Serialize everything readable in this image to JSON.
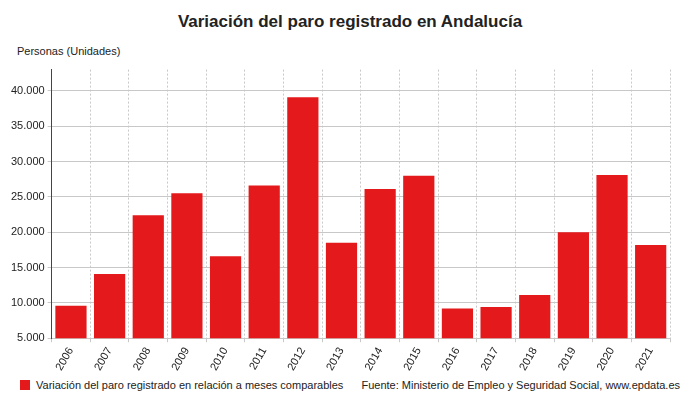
{
  "chart_data": {
    "type": "bar",
    "title": "Variación del paro registrado en Andalucía",
    "y_label": "Personas (Unidades)",
    "categories": [
      "2006",
      "2007",
      "2008",
      "2009",
      "2010",
      "2011",
      "2012",
      "2013",
      "2014",
      "2015",
      "2016",
      "2017",
      "2018",
      "2019",
      "2020",
      "2021"
    ],
    "series": [
      {
        "name": "Variación del paro registrado en relación a meses comparables",
        "color": "#e3191b",
        "values": [
          9600,
          14100,
          22400,
          25500,
          16600,
          26600,
          39100,
          18500,
          26100,
          28000,
          9200,
          9400,
          11100,
          20000,
          28100,
          18200
        ]
      }
    ],
    "ylim": [
      5000,
      43000
    ],
    "yticks": [
      {
        "value": 5000,
        "label": "5.000"
      },
      {
        "value": 10000,
        "label": "10.000"
      },
      {
        "value": 15000,
        "label": "15.000"
      },
      {
        "value": 20000,
        "label": "20.000"
      },
      {
        "value": 25000,
        "label": "25.000"
      },
      {
        "value": 30000,
        "label": "30.000"
      },
      {
        "value": 35000,
        "label": "35.000"
      },
      {
        "value": 40000,
        "label": "40.000"
      }
    ],
    "grid": true,
    "legend": "bottom",
    "annotations": [
      "Fuente: Ministerio de Empleo y Seguridad Social, www.epdata.es"
    ]
  }
}
